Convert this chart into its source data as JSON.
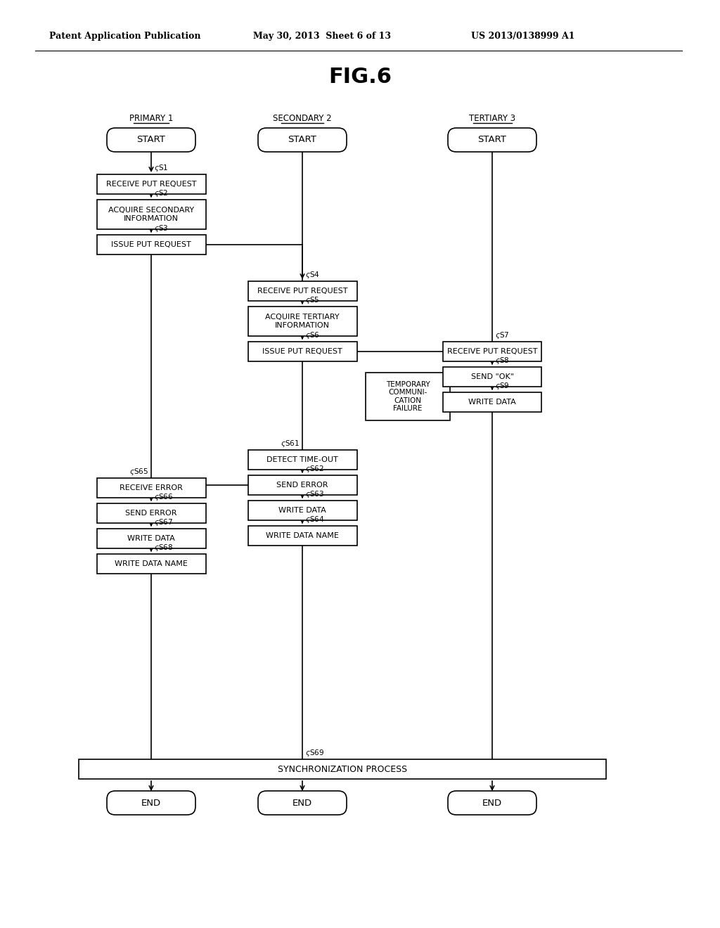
{
  "title": "FIG.6",
  "header_left": "Patent Application Publication",
  "header_mid": "May 30, 2013  Sheet 6 of 13",
  "header_right": "US 2013/0138999 A1",
  "col_labels": [
    "PRIMARY 1",
    "SECONDARY 2",
    "TERTIARY 3"
  ],
  "background": "#ffffff"
}
